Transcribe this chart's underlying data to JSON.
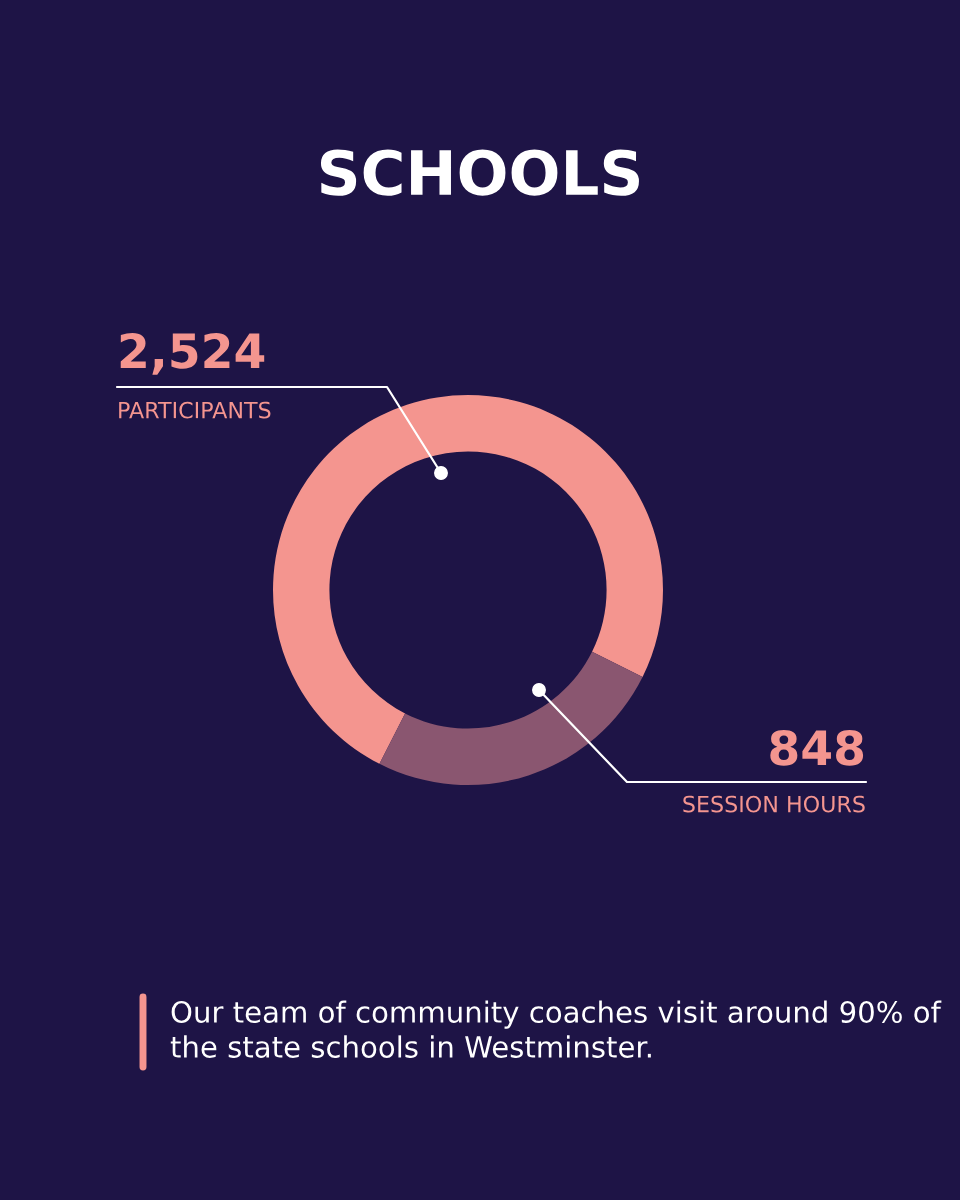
{
  "chart_data": {
    "type": "donut",
    "title": "SCHOOLS",
    "categories": [
      "PARTICIPANTS",
      "SESSION HOURS"
    ],
    "values": [
      2524,
      848
    ],
    "value_labels": [
      "2,524",
      "848"
    ],
    "colors": [
      "#f4958f",
      "#8a5670"
    ],
    "annotations": [
      "Our team of community coaches visit around 90% of the state schools in Westminster."
    ]
  }
}
